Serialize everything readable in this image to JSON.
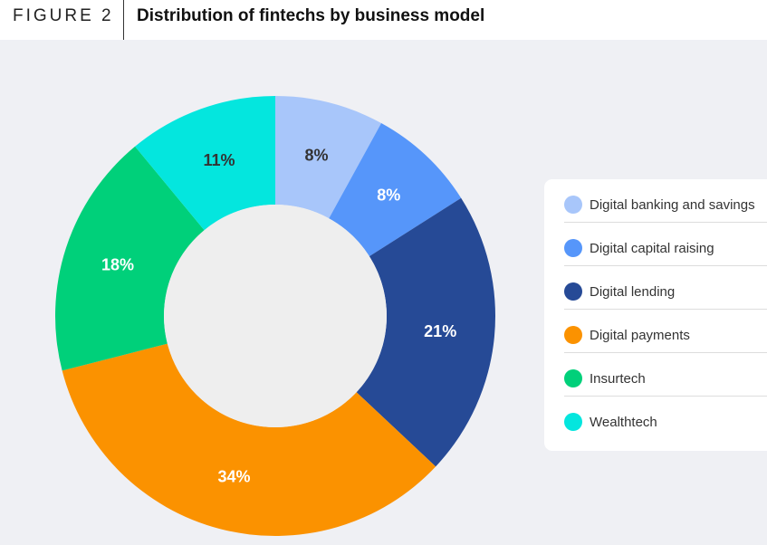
{
  "header": {
    "figure_label": "FIGURE 2",
    "title": "Distribution of fintechs by business model"
  },
  "chart_data": {
    "type": "pie",
    "donut": true,
    "categories": [
      "Digital banking and savings",
      "Digital capital raising",
      "Digital lending",
      "Digital payments",
      "Insurtech",
      "Wealthtech"
    ],
    "values": [
      8,
      8,
      21,
      34,
      18,
      11
    ],
    "data_labels": [
      "8%",
      "8%",
      "21%",
      "34%",
      "18%",
      "11%"
    ],
    "colors": [
      "#a8c6fa",
      "#5696fa",
      "#264a96",
      "#fb9200",
      "#00d07a",
      "#04e6de"
    ],
    "label_colors": [
      "#333333",
      "#ffffff",
      "#ffffff",
      "#ffffff",
      "#ffffff",
      "#333333"
    ],
    "legend_position": "right"
  },
  "legend": {
    "items": [
      {
        "label": "Digital banking and savings",
        "color": "#a8c6fa"
      },
      {
        "label": "Digital capital raising",
        "color": "#5696fa"
      },
      {
        "label": "Digital lending",
        "color": "#264a96"
      },
      {
        "label": "Digital payments",
        "color": "#fb9200"
      },
      {
        "label": "Insurtech",
        "color": "#00d07a"
      },
      {
        "label": "Wealthtech",
        "color": "#04e6de"
      }
    ]
  }
}
